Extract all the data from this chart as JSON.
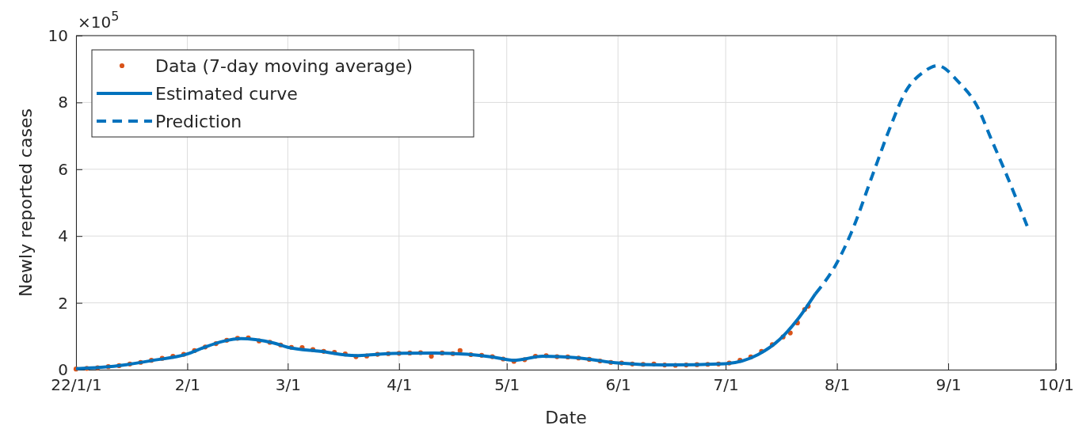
{
  "chart_data": {
    "type": "line",
    "xlabel": "Date",
    "ylabel": "Newly reported cases",
    "annotations": [
      "×10$^{5}$"
    ],
    "xlim": [
      "--01-01",
      "--10-01"
    ],
    "xticks": [
      {
        "value": "--01-01",
        "label": "22/1/1"
      },
      {
        "value": "--02-01",
        "label": "2/1"
      },
      {
        "value": "--03-01",
        "label": "3/1"
      },
      {
        "value": "--04-01",
        "label": "4/1"
      },
      {
        "value": "--05-01",
        "label": "5/1"
      },
      {
        "value": "--06-01",
        "label": "6/1"
      },
      {
        "value": "--07-01",
        "label": "7/1"
      },
      {
        "value": "--08-01",
        "label": "8/1"
      },
      {
        "value": "--09-01",
        "label": "9/1"
      },
      {
        "value": "--10-01",
        "label": "10/1"
      }
    ],
    "ylim": [
      0,
      10
    ],
    "yticks": [
      0,
      2,
      4,
      6,
      8,
      10
    ],
    "grid": true,
    "legend": "top left",
    "series": [
      {
        "name": "Data (7-day moving average)",
        "type": "scatter",
        "marker": "circle",
        "color": "#d95319",
        "x": [
          "--01-01",
          "--01-04",
          "--01-07",
          "--01-10",
          "--01-13",
          "--01-16",
          "--01-19",
          "--01-22",
          "--01-25",
          "--01-28",
          "--01-31",
          "--02-03",
          "--02-06",
          "--02-09",
          "--02-12",
          "--02-15",
          "--02-18",
          "--02-21",
          "--02-24",
          "--02-27",
          "--03-02",
          "--03-05",
          "--03-08",
          "--03-11",
          "--03-14",
          "--03-17",
          "--03-20",
          "--03-23",
          "--03-26",
          "--03-29",
          "--04-01",
          "--04-04",
          "--04-07",
          "--04-10",
          "--04-13",
          "--04-16",
          "--04-18",
          "--04-21",
          "--04-24",
          "--04-27",
          "--04-30",
          "--05-03",
          "--05-06",
          "--05-09",
          "--05-12",
          "--05-15",
          "--05-18",
          "--05-21",
          "--05-24",
          "--05-27",
          "--05-30",
          "--06-02",
          "--06-05",
          "--06-08",
          "--06-11",
          "--06-14",
          "--06-17",
          "--06-20",
          "--06-23",
          "--06-26",
          "--06-29",
          "--07-02",
          "--07-05",
          "--07-08",
          "--07-11",
          "--07-14",
          "--07-17",
          "--07-19",
          "--07-21",
          "--07-23",
          "--07-24"
        ],
        "values": [
          0.02,
          0.04,
          0.06,
          0.09,
          0.12,
          0.17,
          0.22,
          0.28,
          0.34,
          0.4,
          0.46,
          0.57,
          0.68,
          0.78,
          0.88,
          0.94,
          0.95,
          0.86,
          0.82,
          0.74,
          0.67,
          0.66,
          0.6,
          0.55,
          0.52,
          0.47,
          0.39,
          0.41,
          0.46,
          0.48,
          0.49,
          0.5,
          0.51,
          0.4,
          0.5,
          0.48,
          0.57,
          0.45,
          0.43,
          0.39,
          0.32,
          0.25,
          0.3,
          0.4,
          0.42,
          0.39,
          0.38,
          0.35,
          0.31,
          0.26,
          0.22,
          0.2,
          0.17,
          0.16,
          0.17,
          0.14,
          0.13,
          0.14,
          0.15,
          0.16,
          0.17,
          0.2,
          0.28,
          0.38,
          0.55,
          0.75,
          0.98,
          1.1,
          1.4,
          1.8,
          1.9
        ]
      },
      {
        "name": "Estimated curve",
        "line_style": "solid",
        "color": "#0072bd",
        "x": [
          "--01-01",
          "--01-08",
          "--01-15",
          "--01-22",
          "--02-01",
          "--02-06",
          "--02-11",
          "--02-16",
          "--02-20",
          "--02-25",
          "--03-01",
          "--03-10",
          "--03-20",
          "--03-27",
          "--04-11",
          "--04-20",
          "--04-27",
          "--05-03",
          "--05-11",
          "--05-20",
          "--06-01",
          "--06-14",
          "--07-01",
          "--07-10",
          "--07-16",
          "--07-21",
          "--07-26"
        ],
        "values": [
          0.03,
          0.07,
          0.15,
          0.27,
          0.47,
          0.68,
          0.85,
          0.93,
          0.9,
          0.8,
          0.67,
          0.55,
          0.42,
          0.47,
          0.5,
          0.46,
          0.38,
          0.28,
          0.4,
          0.36,
          0.2,
          0.14,
          0.18,
          0.45,
          0.9,
          1.5,
          2.27
        ]
      },
      {
        "name": "Prediction",
        "line_style": "dashed",
        "color": "#0072bd",
        "x": [
          "--07-26",
          "--08-01",
          "--08-05",
          "--08-11",
          "--08-16",
          "--08-20",
          "--08-25",
          "--08-29",
          "--09-04",
          "--09-09",
          "--09-13",
          "--09-17",
          "--09-23"
        ],
        "values": [
          2.27,
          3.2,
          4.1,
          5.85,
          7.3,
          8.3,
          8.9,
          9.1,
          8.6,
          7.9,
          6.9,
          5.9,
          4.3
        ]
      }
    ]
  }
}
